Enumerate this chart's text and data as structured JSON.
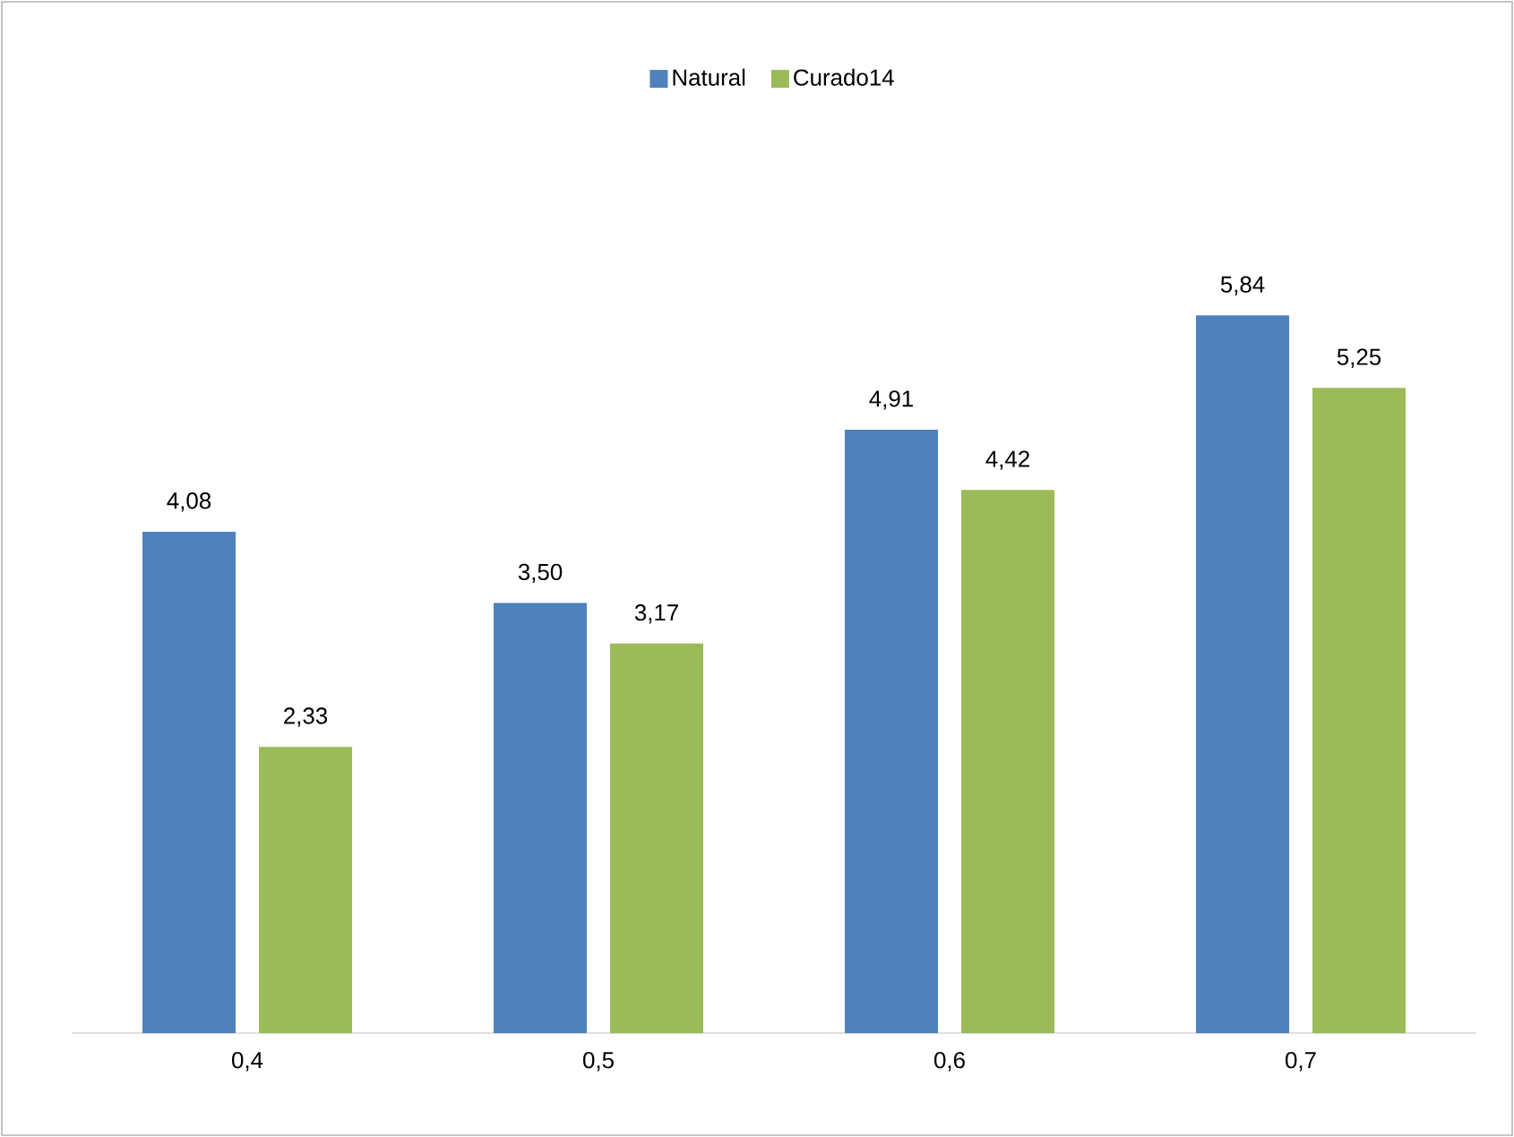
{
  "chart_data": {
    "type": "bar",
    "categories": [
      "0,4",
      "0,5",
      "0,6",
      "0,7"
    ],
    "series": [
      {
        "name": "Natural",
        "color": "#4f81bd",
        "values": [
          4.08,
          3.5,
          4.91,
          5.84
        ],
        "value_labels": [
          "4,08",
          "3,50",
          "4,91",
          "5,84"
        ]
      },
      {
        "name": "Curado14",
        "color": "#9bbb59",
        "values": [
          2.33,
          3.17,
          4.42,
          5.25
        ],
        "value_labels": [
          "2,33",
          "3,17",
          "4,42",
          "5,25"
        ]
      }
    ],
    "legend": "top"
  }
}
